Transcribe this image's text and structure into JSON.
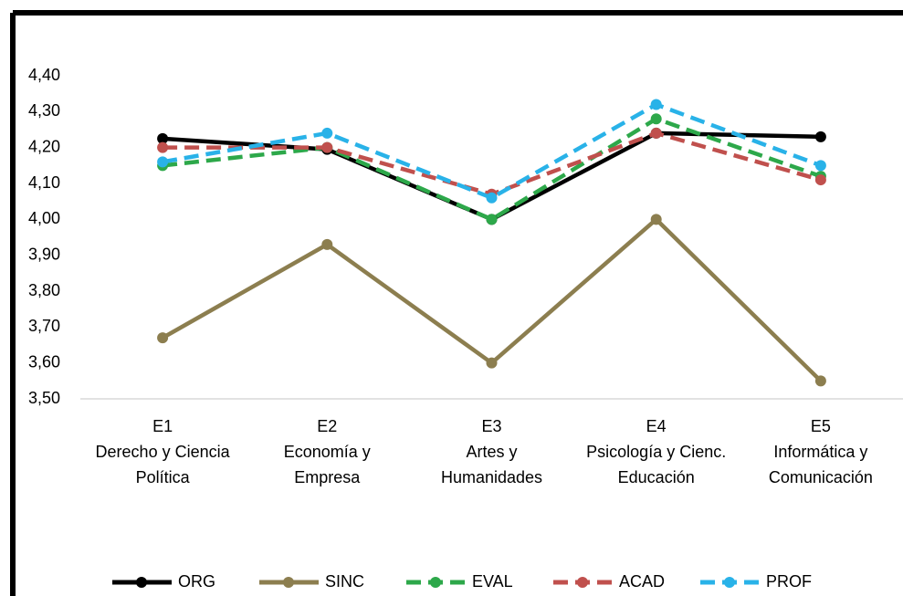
{
  "chart_data": {
    "type": "line",
    "categories": [
      [
        "E1",
        "Derecho y Ciencia",
        "Política"
      ],
      [
        "E2",
        "Economía y",
        "Empresa"
      ],
      [
        "E3",
        "Artes y",
        "Humanidades"
      ],
      [
        "E4",
        "Psicología y Cienc.",
        "Educación"
      ],
      [
        "E5",
        "Informática y",
        "Comunicación"
      ]
    ],
    "series": [
      {
        "name": "ORG",
        "color": "#000000",
        "dashed": false,
        "values": [
          4.225,
          4.195,
          4.0,
          4.24,
          4.23
        ]
      },
      {
        "name": "SINC",
        "color": "#8c7e4f",
        "dashed": false,
        "values": [
          3.67,
          3.93,
          3.6,
          4.0,
          3.55
        ]
      },
      {
        "name": "EVAL",
        "color": "#2da84a",
        "dashed": true,
        "values": [
          4.15,
          4.2,
          4.0,
          4.28,
          4.12
        ]
      },
      {
        "name": "ACAD",
        "color": "#c0504d",
        "dashed": true,
        "values": [
          4.2,
          4.2,
          4.07,
          4.24,
          4.11
        ]
      },
      {
        "name": "PROF",
        "color": "#29b2e8",
        "dashed": true,
        "values": [
          4.16,
          4.24,
          4.06,
          4.32,
          4.15
        ]
      }
    ],
    "ylim": [
      3.5,
      4.4
    ],
    "yticks": [
      {
        "value": 3.5,
        "label": "3,50"
      },
      {
        "value": 3.6,
        "label": "3,60"
      },
      {
        "value": 3.7,
        "label": "3,70"
      },
      {
        "value": 3.8,
        "label": "3,80"
      },
      {
        "value": 3.9,
        "label": "3,90"
      },
      {
        "value": 4.0,
        "label": "4,00"
      },
      {
        "value": 4.1,
        "label": "4,10"
      },
      {
        "value": 4.2,
        "label": "4,20"
      },
      {
        "value": 4.3,
        "label": "4,30"
      },
      {
        "value": 4.4,
        "label": "4,40"
      }
    ],
    "grid": false,
    "legend": "bottom"
  }
}
